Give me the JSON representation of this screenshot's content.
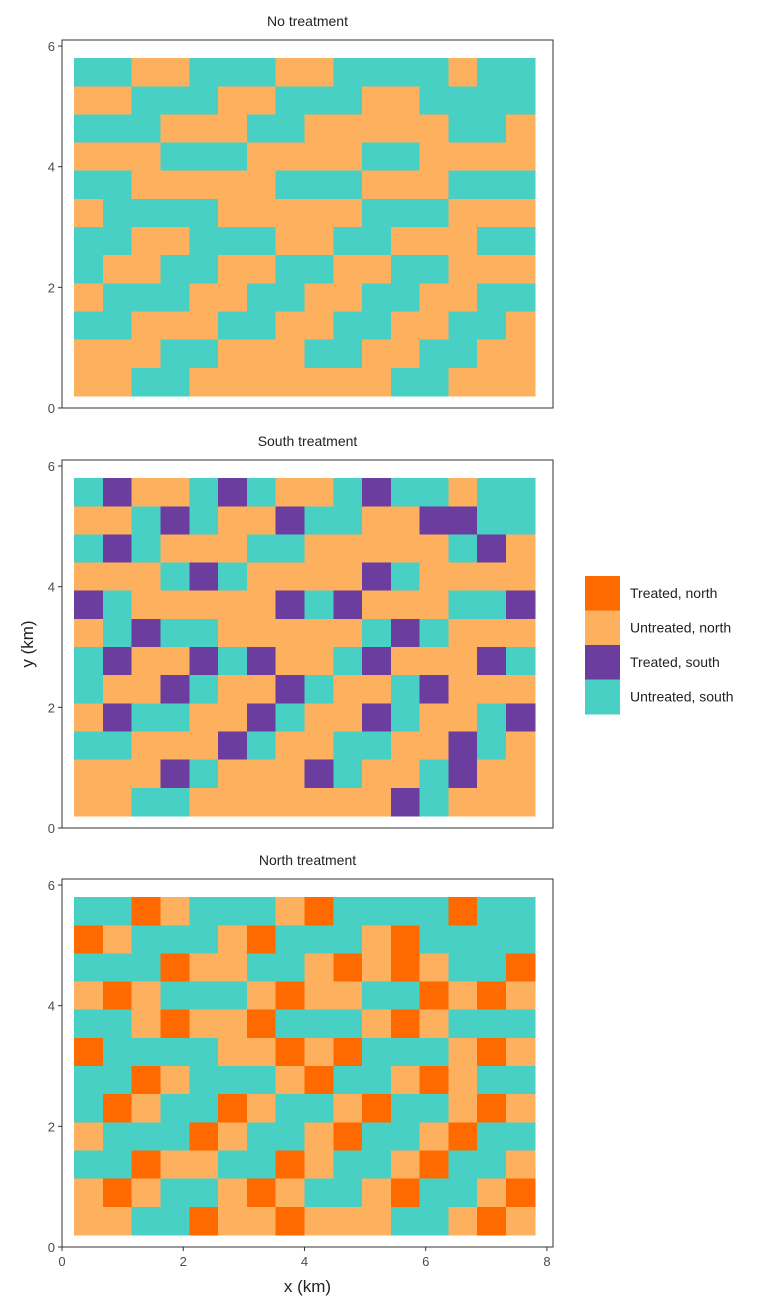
{
  "chart_data": [
    {
      "type": "raster",
      "title": "No treatment",
      "xlim": [
        0,
        8.1
      ],
      "ylim": [
        0,
        6.1
      ],
      "yticks": [
        0,
        2,
        4,
        6
      ],
      "extent_x": [
        0.2,
        7.8
      ],
      "extent_y": [
        0.2,
        5.8
      ],
      "z": [
        [
          3,
          3,
          1,
          1,
          3,
          3,
          3,
          1,
          1,
          3,
          3,
          3,
          3,
          1,
          3,
          3
        ],
        [
          1,
          1,
          3,
          3,
          3,
          1,
          1,
          3,
          3,
          3,
          1,
          1,
          3,
          3,
          3,
          3
        ],
        [
          3,
          3,
          3,
          1,
          1,
          1,
          3,
          3,
          1,
          1,
          1,
          1,
          1,
          3,
          3,
          1
        ],
        [
          1,
          1,
          1,
          3,
          3,
          3,
          1,
          1,
          1,
          1,
          3,
          3,
          1,
          1,
          1,
          1
        ],
        [
          3,
          3,
          1,
          1,
          1,
          1,
          1,
          3,
          3,
          3,
          1,
          1,
          1,
          3,
          3,
          3
        ],
        [
          1,
          3,
          3,
          3,
          3,
          1,
          1,
          1,
          1,
          1,
          3,
          3,
          3,
          1,
          1,
          1
        ],
        [
          3,
          3,
          1,
          1,
          3,
          3,
          3,
          1,
          1,
          3,
          3,
          1,
          1,
          1,
          3,
          3
        ],
        [
          3,
          1,
          1,
          3,
          3,
          1,
          1,
          3,
          3,
          1,
          1,
          3,
          3,
          1,
          1,
          1
        ],
        [
          1,
          3,
          3,
          3,
          1,
          1,
          3,
          3,
          1,
          1,
          3,
          3,
          1,
          1,
          3,
          3
        ],
        [
          3,
          3,
          1,
          1,
          1,
          3,
          3,
          1,
          1,
          3,
          3,
          1,
          1,
          3,
          3,
          1
        ],
        [
          1,
          1,
          1,
          3,
          3,
          1,
          1,
          1,
          3,
          3,
          1,
          1,
          3,
          3,
          1,
          1
        ],
        [
          1,
          1,
          3,
          3,
          1,
          1,
          1,
          1,
          1,
          1,
          1,
          3,
          3,
          1,
          1,
          1
        ]
      ]
    },
    {
      "type": "raster",
      "title": "South treatment",
      "xlim": [
        0,
        8.1
      ],
      "ylim": [
        0,
        6.1
      ],
      "yticks": [
        0,
        2,
        4,
        6
      ],
      "extent_x": [
        0.2,
        7.8
      ],
      "extent_y": [
        0.2,
        5.8
      ],
      "ylabel": "y (km)",
      "legend": {
        "labels": [
          "Treated, north",
          "Untreated, north",
          "Treated, south",
          "Untreated, south"
        ],
        "colors": [
          "#ff6a00",
          "#fdb05e",
          "#6a3d9f",
          "#48d0c4"
        ]
      },
      "z": [
        [
          3,
          2,
          1,
          1,
          3,
          2,
          3,
          1,
          1,
          3,
          2,
          3,
          3,
          1,
          3,
          3
        ],
        [
          1,
          1,
          3,
          2,
          3,
          1,
          1,
          2,
          3,
          3,
          1,
          1,
          2,
          2,
          3,
          3
        ],
        [
          3,
          2,
          3,
          1,
          1,
          1,
          3,
          3,
          1,
          1,
          1,
          1,
          1,
          3,
          2,
          1
        ],
        [
          1,
          1,
          1,
          3,
          2,
          3,
          1,
          1,
          1,
          1,
          2,
          3,
          1,
          1,
          1,
          1
        ],
        [
          2,
          3,
          1,
          1,
          1,
          1,
          1,
          2,
          3,
          2,
          1,
          1,
          1,
          3,
          3,
          2
        ],
        [
          1,
          3,
          2,
          3,
          3,
          1,
          1,
          1,
          1,
          1,
          3,
          2,
          3,
          1,
          1,
          1
        ],
        [
          3,
          2,
          1,
          1,
          2,
          3,
          2,
          1,
          1,
          3,
          2,
          1,
          1,
          1,
          2,
          3
        ],
        [
          3,
          1,
          1,
          2,
          3,
          1,
          1,
          2,
          3,
          1,
          1,
          3,
          2,
          1,
          1,
          1
        ],
        [
          1,
          2,
          3,
          3,
          1,
          1,
          2,
          3,
          1,
          1,
          2,
          3,
          1,
          1,
          3,
          2
        ],
        [
          3,
          3,
          1,
          1,
          1,
          2,
          3,
          1,
          1,
          3,
          3,
          1,
          1,
          2,
          3,
          1
        ],
        [
          1,
          1,
          1,
          2,
          3,
          1,
          1,
          1,
          2,
          3,
          1,
          1,
          3,
          2,
          1,
          1
        ],
        [
          1,
          1,
          3,
          3,
          1,
          1,
          1,
          1,
          1,
          1,
          1,
          2,
          3,
          1,
          1,
          1
        ]
      ]
    },
    {
      "type": "raster",
      "title": "North treatment",
      "xlim": [
        0,
        8.1
      ],
      "ylim": [
        0,
        6.1
      ],
      "yticks": [
        0,
        2,
        4,
        6
      ],
      "xticks": [
        0,
        2,
        4,
        6,
        8
      ],
      "xlabel": "x (km)",
      "extent_x": [
        0.2,
        7.8
      ],
      "extent_y": [
        0.2,
        5.8
      ],
      "z": [
        [
          3,
          3,
          0,
          1,
          3,
          3,
          3,
          1,
          0,
          3,
          3,
          3,
          3,
          0,
          3,
          3
        ],
        [
          0,
          1,
          3,
          3,
          3,
          1,
          0,
          3,
          3,
          3,
          1,
          0,
          3,
          3,
          3,
          3
        ],
        [
          3,
          3,
          3,
          0,
          1,
          1,
          3,
          3,
          1,
          0,
          1,
          0,
          1,
          3,
          3,
          0
        ],
        [
          1,
          0,
          1,
          3,
          3,
          3,
          1,
          0,
          1,
          1,
          3,
          3,
          0,
          1,
          0,
          1
        ],
        [
          3,
          3,
          1,
          0,
          1,
          1,
          0,
          3,
          3,
          3,
          1,
          0,
          1,
          3,
          3,
          3
        ],
        [
          0,
          3,
          3,
          3,
          3,
          1,
          1,
          0,
          1,
          0,
          3,
          3,
          3,
          1,
          0,
          1
        ],
        [
          3,
          3,
          0,
          1,
          3,
          3,
          3,
          1,
          0,
          3,
          3,
          1,
          0,
          1,
          3,
          3
        ],
        [
          3,
          0,
          1,
          3,
          3,
          0,
          1,
          3,
          3,
          1,
          0,
          3,
          3,
          1,
          0,
          1
        ],
        [
          1,
          3,
          3,
          3,
          0,
          1,
          3,
          3,
          1,
          0,
          3,
          3,
          1,
          0,
          3,
          3
        ],
        [
          3,
          3,
          0,
          1,
          1,
          3,
          3,
          0,
          1,
          3,
          3,
          1,
          0,
          3,
          3,
          1
        ],
        [
          1,
          0,
          1,
          3,
          3,
          1,
          0,
          1,
          3,
          3,
          1,
          0,
          3,
          3,
          1,
          0
        ],
        [
          1,
          1,
          3,
          3,
          0,
          1,
          1,
          0,
          1,
          1,
          1,
          3,
          3,
          1,
          0,
          1
        ]
      ]
    }
  ]
}
